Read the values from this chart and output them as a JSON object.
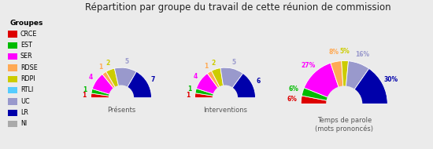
{
  "title": "Répartition par groupe du travail de cette réunion de commission",
  "groups": [
    "CRCE",
    "EST",
    "SER",
    "RDSE",
    "RDPI",
    "RTLI",
    "UC",
    "LR",
    "NI"
  ],
  "colors": [
    "#dd0000",
    "#00bb00",
    "#ff00ff",
    "#ffaa55",
    "#cccc00",
    "#55ccff",
    "#9999cc",
    "#0000aa",
    "#aaaaaa"
  ],
  "presences": [
    1,
    1,
    4,
    1,
    2,
    0,
    5,
    7,
    0
  ],
  "interventions": [
    1,
    1,
    4,
    1,
    2,
    0,
    5,
    6,
    0
  ],
  "temps_pct": [
    6,
    6,
    27,
    8,
    5,
    0,
    16,
    30,
    0
  ],
  "chart_labels": [
    "Présents",
    "Interventions",
    "Temps de parole\n(mots prononcés)"
  ],
  "legend_title": "Groupes",
  "background_color": "#ebebeb",
  "fig_width": 5.5,
  "fig_height": 1.9
}
